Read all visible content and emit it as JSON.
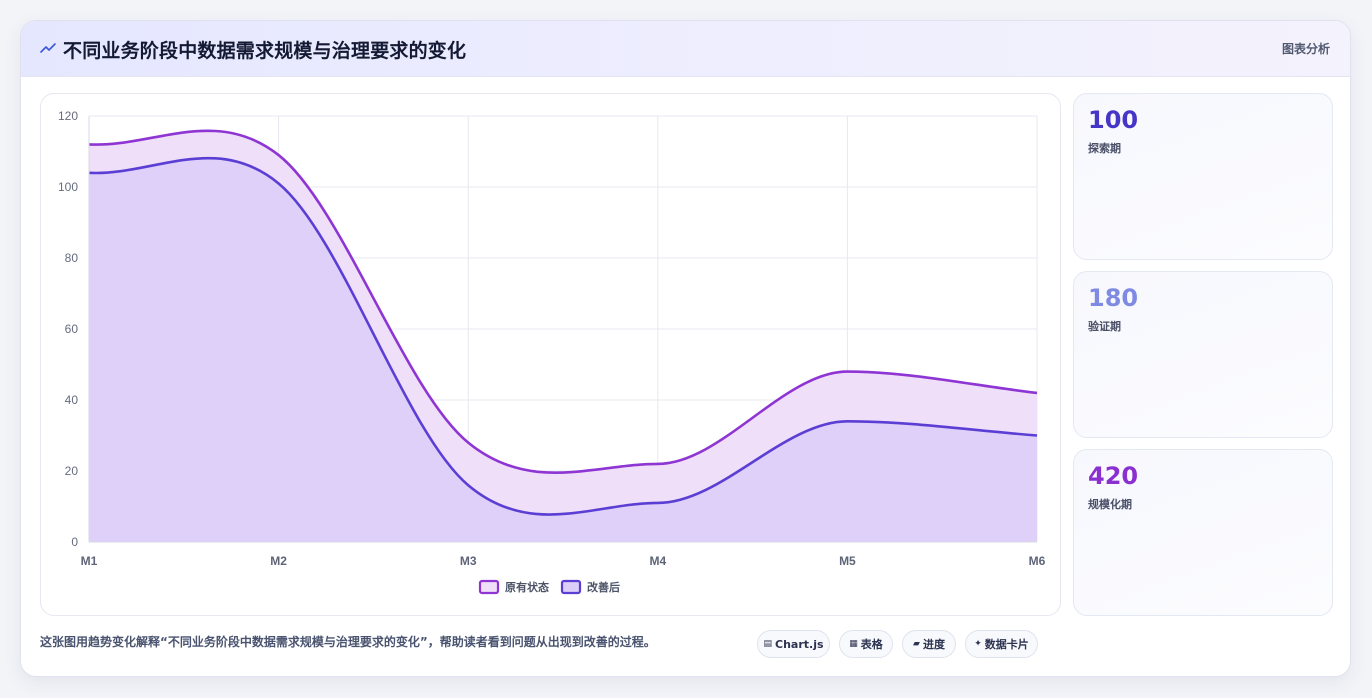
{
  "header": {
    "title": "不同业务阶段中数据需求规模与治理要求的变化",
    "right_label": "图表分析",
    "icon": "trend-line-icon"
  },
  "chart_data": {
    "type": "area",
    "categories": [
      "M1",
      "M2",
      "M3",
      "M4",
      "M5",
      "M6"
    ],
    "series": [
      {
        "name": "原有状态",
        "values": [
          112,
          109,
          28,
          22,
          48,
          42
        ],
        "color": "#8e35d3",
        "fill": "#efdff8"
      },
      {
        "name": "改善后",
        "values": [
          104,
          101,
          16,
          11,
          34,
          30
        ],
        "color": "#5b3fd4",
        "fill": "#dccef8"
      }
    ],
    "ylim": [
      0,
      120
    ],
    "yticks": [
      0,
      20,
      40,
      60,
      80,
      100,
      120
    ],
    "grid": true,
    "legend": "bottom-center"
  },
  "stats": [
    {
      "value": "100",
      "label": "探索期",
      "color": "#4636c8"
    },
    {
      "value": "180",
      "label": "验证期",
      "color": "#7f8be3"
    },
    {
      "value": "420",
      "label": "规模化期",
      "color": "#8a2fd0"
    }
  ],
  "footer": {
    "description": "这张图用趋势变化解释“不同业务阶段中数据需求规模与治理要求的变化”，帮助读者看到问题从出现到改善的过程。",
    "chips": [
      {
        "icon": "chart-icon",
        "glyph": "▤",
        "label": "Chart.js"
      },
      {
        "icon": "table-icon",
        "glyph": "▦",
        "label": "表格"
      },
      {
        "icon": "progress-icon",
        "glyph": "▰",
        "label": "进度"
      },
      {
        "icon": "card-icon",
        "glyph": "✦",
        "label": "数据卡片"
      }
    ]
  }
}
